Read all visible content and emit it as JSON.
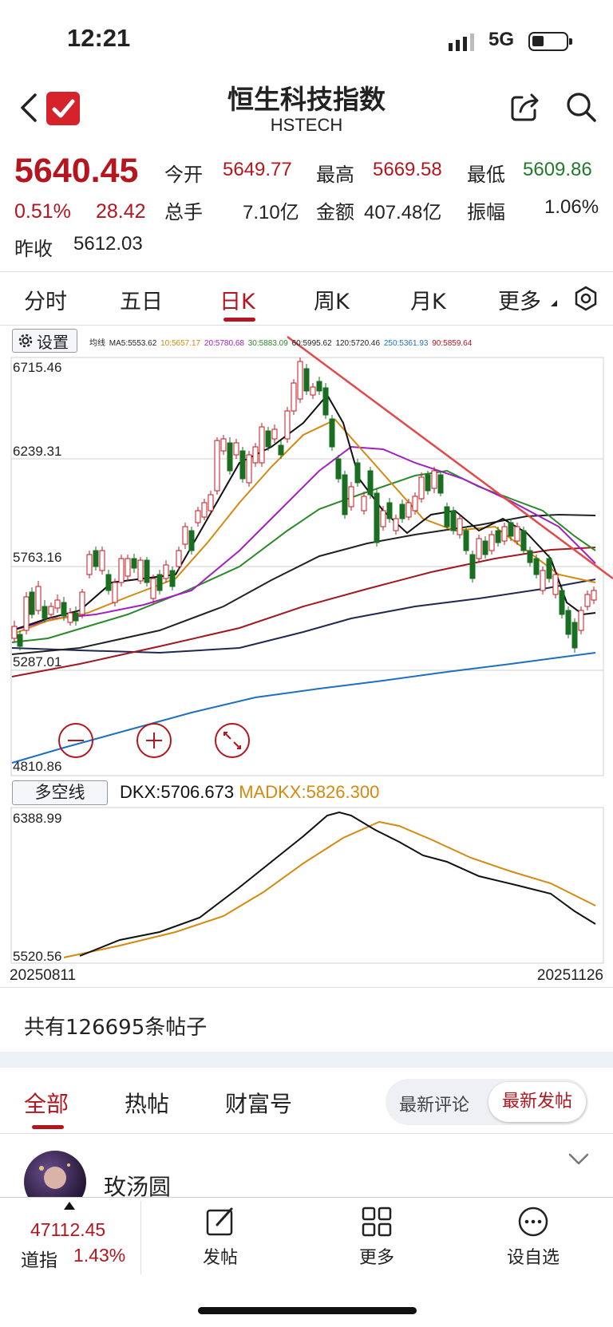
{
  "status": {
    "time": "12:21",
    "network": "5G"
  },
  "header": {
    "title": "恒生科技指数",
    "subtitle": "HSTECH"
  },
  "quote": {
    "price": "5640.45",
    "change_pct": "0.51%",
    "change": "28.42",
    "open_label": "今开",
    "open": "5649.77",
    "high_label": "最高",
    "high": "5669.58",
    "low_label": "最低",
    "low": "5609.86",
    "volume_label": "总手",
    "volume": "7.10亿",
    "amount_label": "金额",
    "amount": "407.48亿",
    "amplitude_label": "振幅",
    "amplitude": "1.06%",
    "prev_close_label": "昨收",
    "prev_close": "5612.03"
  },
  "tabs": [
    "分时",
    "五日",
    "日K",
    "周K",
    "月K",
    "更多"
  ],
  "chart": {
    "settings_label": "设置",
    "ma_title": "均线",
    "ma": [
      {
        "text": "MA5:5553.62",
        "color": "#222222"
      },
      {
        "text": "10:5657.17",
        "color": "#d4890f"
      },
      {
        "text": "20:5780.68",
        "color": "#a020c0"
      },
      {
        "text": "30:5883.09",
        "color": "#2a8a2a"
      },
      {
        "text": "60:5995.62",
        "color": "#222222"
      },
      {
        "text": "120:5720.46",
        "color": "#222222"
      },
      {
        "text": "250:5361.93",
        "color": "#1f6fbf"
      },
      {
        "text": "90:5859.64",
        "color": "#b3161f"
      }
    ],
    "y_labels": [
      "6715.46",
      "6239.31",
      "5763.16",
      "5287.01",
      "4810.86"
    ],
    "indicator_label": "多空线",
    "dkx": "DKX:5706.673",
    "madkx": "MADKX:5826.300",
    "sub_y_labels": [
      "6388.99",
      "5520.56"
    ],
    "date_start": "20250811",
    "date_end": "20251126"
  },
  "chart_data": {
    "type": "candlestick",
    "y_range": [
      4810.86,
      6715.46
    ],
    "x_range": [
      "20250811",
      "20251126"
    ],
    "indicator": {
      "DKX": 5706.673,
      "MADKX": 5826.3,
      "y_range": [
        5520.56,
        6388.99
      ]
    }
  },
  "posts": {
    "count_text": "共有126695条帖子",
    "tabs": [
      "全部",
      "热帖",
      "财富号"
    ],
    "sort_options": [
      "最新评论",
      "最新发帖"
    ],
    "first_user": "玫汤圆"
  },
  "bottom": {
    "index_value": "47112.45",
    "index_name": "道指",
    "index_pct": "1.43%",
    "nav": [
      "发帖",
      "更多",
      "设自选"
    ]
  }
}
